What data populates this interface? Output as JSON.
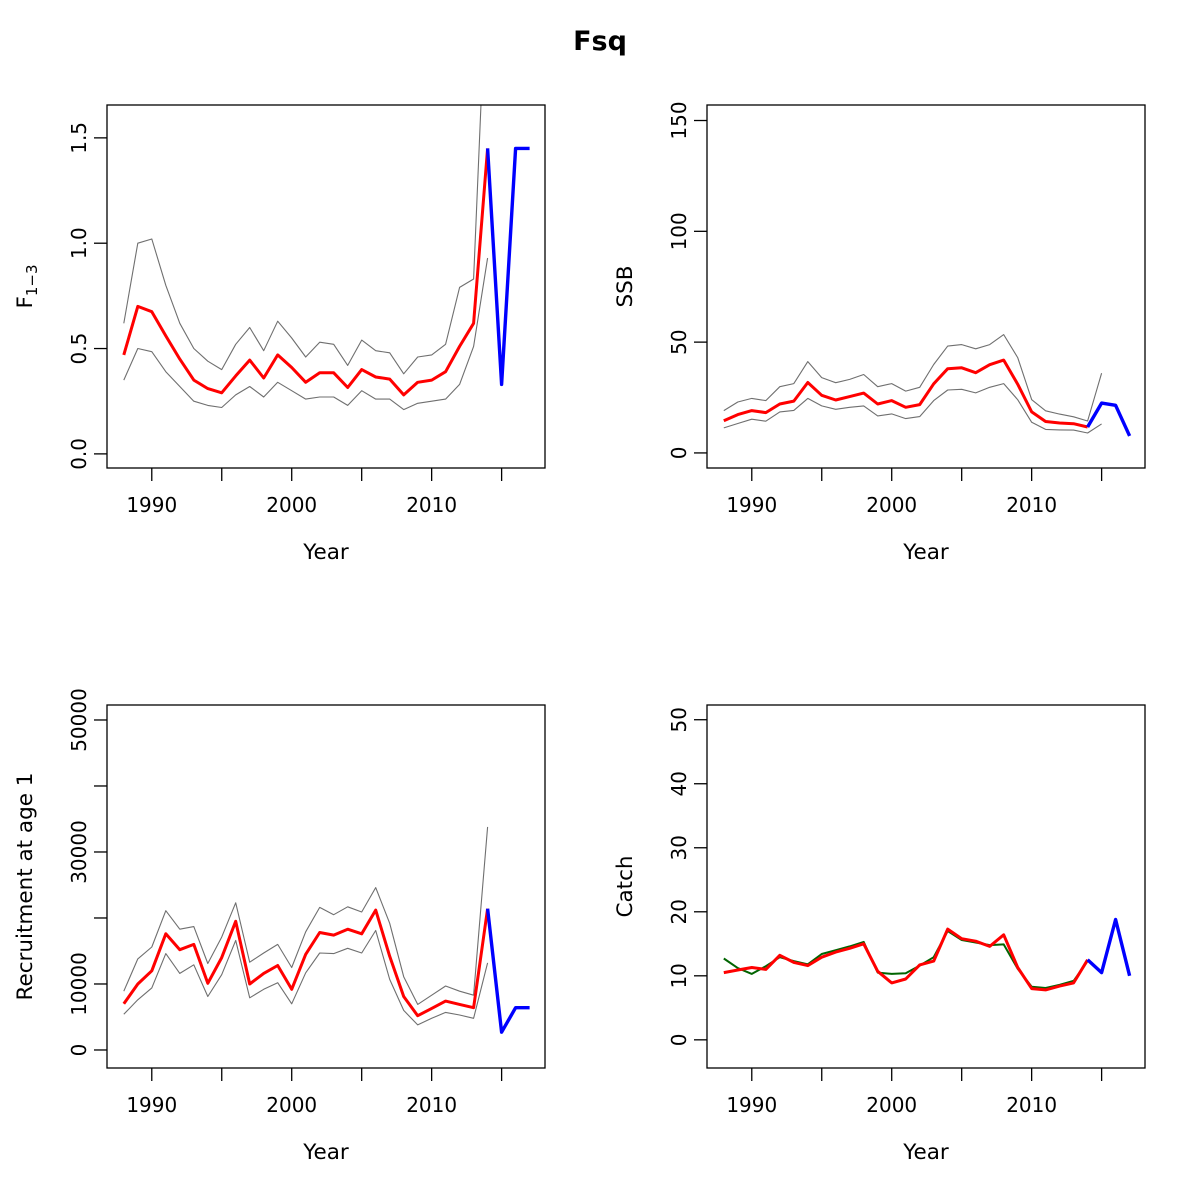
{
  "title": "Fsq",
  "axis_colors": {
    "frame": "#000000",
    "tick_label": "#000000"
  },
  "chart_data": [
    {
      "id": "f13",
      "type": "line",
      "ylabel_main": "F",
      "ylabel_sub": "1−3",
      "xlabel": "Year",
      "xlim": [
        1986.8,
        2018.1
      ],
      "ylim": [
        -0.067,
        1.656
      ],
      "xticks": {
        "values": [
          1990,
          1995,
          2000,
          2005,
          2010,
          2015
        ],
        "labels": [
          "1990",
          "",
          "2000",
          "",
          "2010",
          ""
        ]
      },
      "yticks": {
        "values": [
          0,
          0.5,
          1,
          1.5
        ],
        "labels": [
          "0.0",
          "0.5",
          "1.0",
          "1.5"
        ]
      },
      "series": [
        {
          "name": "ci-upper",
          "color": "#6f6f6f",
          "width": 1.1,
          "x": [
            1988,
            1989,
            1990,
            1991,
            1992,
            1993,
            1994,
            1995,
            1996,
            1997,
            1998,
            1999,
            2000,
            2001,
            2002,
            2003,
            2004,
            2005,
            2006,
            2007,
            2008,
            2009,
            2010,
            2011,
            2012,
            2013,
            2014
          ],
          "y": [
            0.62,
            1.0,
            1.02,
            0.8,
            0.62,
            0.5,
            0.44,
            0.4,
            0.52,
            0.6,
            0.49,
            0.63,
            0.55,
            0.46,
            0.53,
            0.52,
            0.42,
            0.54,
            0.49,
            0.48,
            0.38,
            0.46,
            0.47,
            0.52,
            0.79,
            0.83,
            2.4
          ]
        },
        {
          "name": "ci-lower",
          "color": "#6f6f6f",
          "width": 1.1,
          "x": [
            1988,
            1989,
            1990,
            1991,
            1992,
            1993,
            1994,
            1995,
            1996,
            1997,
            1998,
            1999,
            2000,
            2001,
            2002,
            2003,
            2004,
            2005,
            2006,
            2007,
            2008,
            2009,
            2010,
            2011,
            2012,
            2013,
            2014
          ],
          "y": [
            0.35,
            0.5,
            0.485,
            0.39,
            0.32,
            0.25,
            0.23,
            0.22,
            0.28,
            0.32,
            0.27,
            0.34,
            0.3,
            0.26,
            0.27,
            0.27,
            0.23,
            0.3,
            0.26,
            0.26,
            0.21,
            0.24,
            0.25,
            0.26,
            0.33,
            0.51,
            0.93
          ]
        },
        {
          "name": "estimate",
          "color": "#ff0000",
          "width": 3,
          "x": [
            1988,
            1989,
            1990,
            1991,
            1992,
            1993,
            1994,
            1995,
            1996,
            1997,
            1998,
            1999,
            2000,
            2001,
            2002,
            2003,
            2004,
            2005,
            2006,
            2007,
            2008,
            2009,
            2010,
            2011,
            2012,
            2013,
            2014
          ],
          "y": [
            0.47,
            0.7,
            0.675,
            0.56,
            0.45,
            0.35,
            0.31,
            0.29,
            0.37,
            0.445,
            0.36,
            0.47,
            0.41,
            0.34,
            0.385,
            0.385,
            0.315,
            0.4,
            0.365,
            0.355,
            0.28,
            0.34,
            0.35,
            0.39,
            0.51,
            0.62,
            1.45
          ]
        },
        {
          "name": "projection",
          "color": "#0000ff",
          "width": 3.4,
          "x": [
            2014,
            2015,
            2016,
            2017
          ],
          "y": [
            1.45,
            0.33,
            1.45,
            1.45
          ]
        }
      ]
    },
    {
      "id": "ssb",
      "type": "line",
      "ylabel_main": "SSB",
      "ylabel_sub": "",
      "xlabel": "Year",
      "xlim": [
        1986.8,
        2018.1
      ],
      "ylim": [
        -6.8,
        157
      ],
      "xticks": {
        "values": [
          1990,
          1995,
          2000,
          2005,
          2010,
          2015
        ],
        "labels": [
          "1990",
          "",
          "2000",
          "",
          "2010",
          ""
        ]
      },
      "yticks": {
        "values": [
          0,
          50,
          100,
          150
        ],
        "labels": [
          "0",
          "50",
          "100",
          "150"
        ]
      },
      "series": [
        {
          "name": "ci-upper",
          "color": "#6f6f6f",
          "width": 1.1,
          "x": [
            1988,
            1989,
            1990,
            1991,
            1992,
            1993,
            1994,
            1995,
            1996,
            1997,
            1998,
            1999,
            2000,
            2001,
            2002,
            2003,
            2004,
            2005,
            2006,
            2007,
            2008,
            2009,
            2010,
            2011,
            2012,
            2013,
            2014,
            2015
          ],
          "y": [
            19.1,
            23.0,
            24.6,
            23.6,
            29.9,
            31.3,
            41.2,
            34.0,
            31.7,
            33.2,
            35.4,
            29.9,
            31.3,
            27.9,
            29.6,
            39.9,
            48.2,
            48.9,
            47.0,
            48.9,
            53.4,
            43.0,
            24.0,
            19.0,
            17.5,
            16.3,
            14.4,
            36.0
          ]
        },
        {
          "name": "ci-lower",
          "color": "#6f6f6f",
          "width": 1.1,
          "x": [
            1988,
            1989,
            1990,
            1991,
            1992,
            1993,
            1994,
            1995,
            1996,
            1997,
            1998,
            1999,
            2000,
            2001,
            2002,
            2003,
            2004,
            2005,
            2006,
            2007,
            2008,
            2009,
            2010,
            2011,
            2012,
            2013,
            2014,
            2015
          ],
          "y": [
            11.3,
            13.3,
            15.2,
            14.3,
            18.5,
            19.2,
            24.6,
            21.2,
            19.7,
            20.6,
            21.2,
            16.7,
            17.6,
            15.5,
            16.4,
            23.6,
            28.4,
            28.7,
            27.1,
            29.6,
            31.3,
            24.0,
            13.8,
            10.6,
            10.4,
            10.3,
            9.0,
            13.1
          ]
        },
        {
          "name": "estimate",
          "color": "#ff0000",
          "width": 3,
          "x": [
            1988,
            1989,
            1990,
            1991,
            1992,
            1993,
            1994,
            1995,
            1996,
            1997,
            1998,
            1999,
            2000,
            2001,
            2002,
            2003,
            2004,
            2005,
            2006,
            2007,
            2008,
            2009,
            2010,
            2011,
            2012,
            2013,
            2014
          ],
          "y": [
            14.5,
            17.3,
            19.1,
            18.2,
            22.1,
            23.4,
            31.8,
            26.0,
            23.9,
            25.4,
            27.0,
            22.1,
            23.6,
            20.6,
            21.8,
            31.2,
            38.0,
            38.4,
            36.2,
            39.8,
            41.9,
            31.0,
            18.5,
            14.2,
            13.5,
            13.2,
            11.7
          ]
        },
        {
          "name": "projection",
          "color": "#0000ff",
          "width": 3.4,
          "x": [
            2014,
            2015,
            2016,
            2017
          ],
          "y": [
            11.7,
            22.5,
            21.5,
            7.7
          ]
        }
      ]
    },
    {
      "id": "recruitment",
      "type": "line",
      "ylabel_main": "Recruitment at age 1",
      "ylabel_sub": "",
      "xlabel": "Year",
      "xlim": [
        1986.8,
        2018.1
      ],
      "ylim": [
        -2730,
        52270
      ],
      "xticks": {
        "values": [
          1990,
          1995,
          2000,
          2005,
          2010,
          2015
        ],
        "labels": [
          "1990",
          "",
          "2000",
          "",
          "2010",
          ""
        ]
      },
      "yticks": {
        "values": [
          0,
          10000,
          20000,
          30000,
          40000,
          50000
        ],
        "labels": [
          "0",
          "10000",
          "",
          "30000",
          "",
          "50000"
        ]
      },
      "series": [
        {
          "name": "ci-upper",
          "color": "#6f6f6f",
          "width": 1.1,
          "x": [
            1988,
            1989,
            1990,
            1991,
            1992,
            1993,
            1994,
            1995,
            1996,
            1997,
            1998,
            1999,
            2000,
            2001,
            2002,
            2003,
            2004,
            2005,
            2006,
            2007,
            2008,
            2009,
            2010,
            2011,
            2012,
            2013,
            2014
          ],
          "y": [
            8900,
            13800,
            15600,
            21100,
            18300,
            18700,
            13100,
            17100,
            22300,
            13300,
            14700,
            16000,
            12500,
            17900,
            21600,
            20500,
            21700,
            20900,
            24600,
            19200,
            11100,
            6900,
            8300,
            9700,
            8900,
            8300,
            33800
          ]
        },
        {
          "name": "ci-lower",
          "color": "#6f6f6f",
          "width": 1.1,
          "x": [
            1988,
            1989,
            1990,
            1991,
            1992,
            1993,
            1994,
            1995,
            1996,
            1997,
            1998,
            1999,
            2000,
            2001,
            2002,
            2003,
            2004,
            2005,
            2006,
            2007,
            2008,
            2009,
            2010,
            2011,
            2012,
            2013,
            2014
          ],
          "y": [
            5400,
            7600,
            9400,
            14600,
            11600,
            12900,
            8100,
            11400,
            16600,
            7900,
            9200,
            10200,
            7000,
            11700,
            14700,
            14600,
            15400,
            14700,
            18100,
            10700,
            6000,
            3800,
            4800,
            5700,
            5300,
            4800,
            13200
          ]
        },
        {
          "name": "estimate",
          "color": "#ff0000",
          "width": 3,
          "x": [
            1988,
            1989,
            1990,
            1991,
            1992,
            1993,
            1994,
            1995,
            1996,
            1997,
            1998,
            1999,
            2000,
            2001,
            2002,
            2003,
            2004,
            2005,
            2006,
            2007,
            2008,
            2009,
            2010,
            2011,
            2012,
            2013,
            2014
          ],
          "y": [
            7000,
            10000,
            12000,
            17600,
            15200,
            16000,
            10100,
            14000,
            19500,
            10000,
            11600,
            12800,
            9200,
            14500,
            17800,
            17400,
            18300,
            17600,
            21200,
            14200,
            8100,
            5200,
            6300,
            7400,
            6900,
            6400,
            21400
          ]
        },
        {
          "name": "projection",
          "color": "#0000ff",
          "width": 3.4,
          "x": [
            2014,
            2015,
            2016,
            2017
          ],
          "y": [
            21400,
            2700,
            6400,
            6400
          ]
        }
      ]
    },
    {
      "id": "catch",
      "type": "line",
      "ylabel_main": "Catch",
      "ylabel_sub": "",
      "xlabel": "Year",
      "xlim": [
        1986.8,
        2018.1
      ],
      "ylim": [
        -4.4,
        52.3
      ],
      "xticks": {
        "values": [
          1990,
          1995,
          2000,
          2005,
          2010,
          2015
        ],
        "labels": [
          "1990",
          "",
          "2000",
          "",
          "2010",
          ""
        ]
      },
      "yticks": {
        "values": [
          0,
          10,
          20,
          30,
          40,
          50
        ],
        "labels": [
          "0",
          "10",
          "20",
          "30",
          "40",
          "50"
        ]
      },
      "series": [
        {
          "name": "observed",
          "color": "#006400",
          "width": 2,
          "x": [
            1988,
            1989,
            1990,
            1991,
            1992,
            1993,
            1994,
            1995,
            1996,
            1997,
            1998,
            1999,
            2000,
            2001,
            2002,
            2003,
            2004,
            2005,
            2006,
            2007,
            2008,
            2009,
            2010,
            2011,
            2012,
            2013,
            2014
          ],
          "y": [
            12.7,
            11.2,
            10.3,
            11.5,
            12.9,
            12.3,
            11.8,
            13.4,
            14.0,
            14.6,
            15.3,
            10.5,
            10.3,
            10.4,
            11.6,
            12.9,
            17.0,
            15.6,
            15.2,
            14.8,
            14.9,
            11.1,
            8.3,
            8.1,
            8.6,
            9.2,
            12.3
          ]
        },
        {
          "name": "estimate",
          "color": "#ff0000",
          "width": 3,
          "x": [
            1988,
            1989,
            1990,
            1991,
            1992,
            1993,
            1994,
            1995,
            1996,
            1997,
            1998,
            1999,
            2000,
            2001,
            2002,
            2003,
            2004,
            2005,
            2006,
            2007,
            2008,
            2009,
            2010,
            2011,
            2012,
            2013,
            2014
          ],
          "y": [
            10.5,
            10.9,
            11.3,
            11.0,
            13.2,
            12.1,
            11.6,
            12.9,
            13.7,
            14.3,
            15.0,
            10.7,
            8.9,
            9.5,
            11.7,
            12.3,
            17.3,
            15.8,
            15.4,
            14.6,
            16.4,
            11.3,
            8.0,
            7.8,
            8.4,
            8.9,
            12.5
          ]
        },
        {
          "name": "projection",
          "color": "#0000ff",
          "width": 3.4,
          "x": [
            2014,
            2015,
            2016,
            2017
          ],
          "y": [
            12.5,
            10.5,
            18.8,
            10.0
          ]
        }
      ]
    }
  ]
}
